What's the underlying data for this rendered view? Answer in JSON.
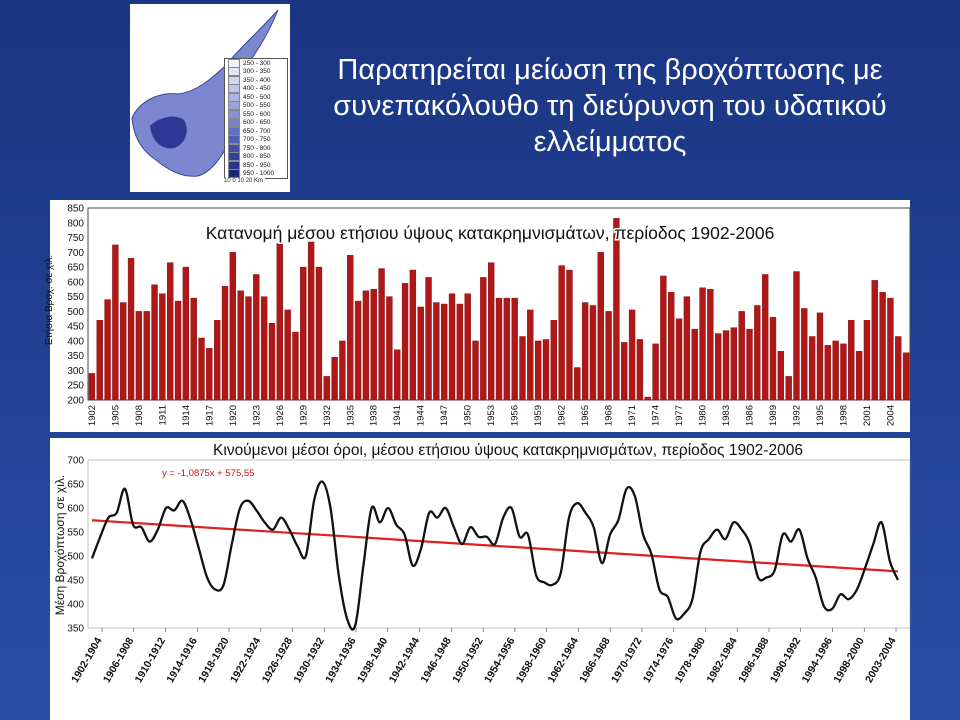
{
  "title": "Παρατηρείται μείωση της βροχόπτωσης με συνεπακόλουθο τη διεύρυνση του υδατικού ελλείμματος",
  "colors": {
    "background": "#1d3a86",
    "bar_fill": "#b01818",
    "line": "#111111",
    "trend": "#e02020"
  },
  "map_legend": {
    "classes": [
      "250 - 300",
      "300 - 350",
      "350 - 400",
      "400 - 450",
      "450 - 500",
      "500 - 550",
      "550 - 600",
      "600 - 650",
      "650 - 700",
      "700 - 750",
      "750 - 800",
      "800 - 850",
      "850 - 950",
      "950 - 1000"
    ],
    "colors": [
      "#f2f2fb",
      "#e3e5f6",
      "#d2d6f1",
      "#c0c6eb",
      "#adb5e4",
      "#9aa3dc",
      "#8792d4",
      "#7581cb",
      "#6370c1",
      "#525fb6",
      "#434fa9",
      "#35409a",
      "#283389",
      "#1c2677"
    ],
    "scale_labels": [
      "10",
      "0",
      "10",
      "20 Km"
    ]
  },
  "chart_data": [
    {
      "type": "bar",
      "title": "Κατανομή μέσου ετήσιου ύψους κατακρημνισμάτων, περίοδος 1902-2006",
      "ylabel": "Ετήσια Βροχ. σε χιλ.",
      "xlabel": "",
      "ylim": [
        200,
        850
      ],
      "yticks": [
        200,
        250,
        300,
        350,
        400,
        450,
        500,
        550,
        600,
        650,
        700,
        750,
        800,
        850
      ],
      "x_tick_labels": [
        "1902",
        "1905",
        "1908",
        "1911",
        "1914",
        "1917",
        "1920",
        "1923",
        "1926",
        "1929",
        "1932",
        "1935",
        "1938",
        "1941",
        "1944",
        "1947",
        "1950",
        "1953",
        "1956",
        "1959",
        "1962",
        "1965",
        "1968",
        "1971",
        "1974",
        "1977",
        "1980",
        "1983",
        "1986",
        "1989",
        "1992",
        "1995",
        "1998",
        "2001",
        "2004"
      ],
      "categories": [
        1902,
        1903,
        1904,
        1905,
        1906,
        1907,
        1908,
        1909,
        1910,
        1911,
        1912,
        1913,
        1914,
        1915,
        1916,
        1917,
        1918,
        1919,
        1920,
        1921,
        1922,
        1923,
        1924,
        1925,
        1926,
        1927,
        1928,
        1929,
        1930,
        1931,
        1932,
        1933,
        1934,
        1935,
        1936,
        1937,
        1938,
        1939,
        1940,
        1941,
        1942,
        1943,
        1944,
        1945,
        1946,
        1947,
        1948,
        1949,
        1950,
        1951,
        1952,
        1953,
        1954,
        1955,
        1956,
        1957,
        1958,
        1959,
        1960,
        1961,
        1962,
        1963,
        1964,
        1965,
        1966,
        1967,
        1968,
        1969,
        1970,
        1971,
        1972,
        1973,
        1974,
        1975,
        1976,
        1977,
        1978,
        1979,
        1980,
        1981,
        1982,
        1983,
        1984,
        1985,
        1986,
        1987,
        1988,
        1989,
        1990,
        1991,
        1992,
        1993,
        1994,
        1995,
        1996,
        1997,
        1998,
        1999,
        2000,
        2001,
        2002,
        2003,
        2004,
        2005,
        2006
      ],
      "values": [
        290,
        470,
        540,
        725,
        530,
        680,
        500,
        500,
        590,
        560,
        665,
        535,
        650,
        545,
        410,
        375,
        470,
        585,
        700,
        570,
        550,
        625,
        550,
        460,
        730,
        505,
        430,
        650,
        735,
        650,
        280,
        345,
        400,
        690,
        535,
        570,
        575,
        645,
        550,
        370,
        595,
        640,
        515,
        615,
        530,
        525,
        560,
        525,
        560,
        400,
        615,
        665,
        545,
        545,
        545,
        415,
        505,
        400,
        405,
        470,
        655,
        640,
        310,
        530,
        520,
        700,
        500,
        815,
        395,
        505,
        405,
        210,
        390,
        620,
        565,
        475,
        550,
        440,
        580,
        575,
        425,
        435,
        445,
        500,
        440,
        520,
        625,
        480,
        365,
        280,
        635,
        510,
        415,
        495,
        385,
        400,
        390,
        470,
        365,
        470,
        605,
        565,
        545,
        415,
        360
      ]
    },
    {
      "type": "line",
      "title": "Κινούμενοι μέσοι όροι, μέσου ετήσιου ύψους κατακρημνισμάτων, περίοδος 1902-2006",
      "ylabel": "Μέση Βροχόπτωση σε χιλ.",
      "xlabel": "",
      "ylim": [
        350,
        700
      ],
      "yticks": [
        350,
        400,
        450,
        500,
        550,
        600,
        650,
        700
      ],
      "equation": "y = -1,0875x + 575,55",
      "trend": {
        "slope": -1.0875,
        "intercept": 575.55
      },
      "x_tick_labels": [
        "1902-1904",
        "1906-1908",
        "1910-1912",
        "1914-1916",
        "1918-1920",
        "1922-1924",
        "1926-1928",
        "1930-1932",
        "1934-1936",
        "1938-1940",
        "1942-1944",
        "1946-1948",
        "1950-1952",
        "1954-1956",
        "1958-1960",
        "1962-1964",
        "1966-1968",
        "1970-1972",
        "1974-1976",
        "1978-1980",
        "1982-1984",
        "1986-1988",
        "1990-1992",
        "1994-1996",
        "1998-2000",
        "2003-2004"
      ],
      "values": [
        495,
        540,
        580,
        590,
        640,
        565,
        560,
        530,
        555,
        600,
        595,
        615,
        575,
        515,
        455,
        430,
        440,
        525,
        600,
        615,
        595,
        570,
        555,
        580,
        555,
        520,
        500,
        615,
        655,
        600,
        460,
        370,
        355,
        480,
        600,
        570,
        600,
        565,
        545,
        480,
        515,
        590,
        580,
        600,
        560,
        525,
        560,
        540,
        540,
        525,
        580,
        600,
        540,
        545,
        460,
        445,
        440,
        465,
        580,
        610,
        590,
        560,
        485,
        545,
        575,
        640,
        625,
        545,
        505,
        430,
        415,
        370,
        380,
        410,
        510,
        535,
        555,
        535,
        570,
        555,
        525,
        455,
        455,
        470,
        545,
        530,
        555,
        495,
        455,
        395,
        390,
        420,
        410,
        430,
        475,
        525,
        570,
        490,
        450
      ]
    }
  ]
}
